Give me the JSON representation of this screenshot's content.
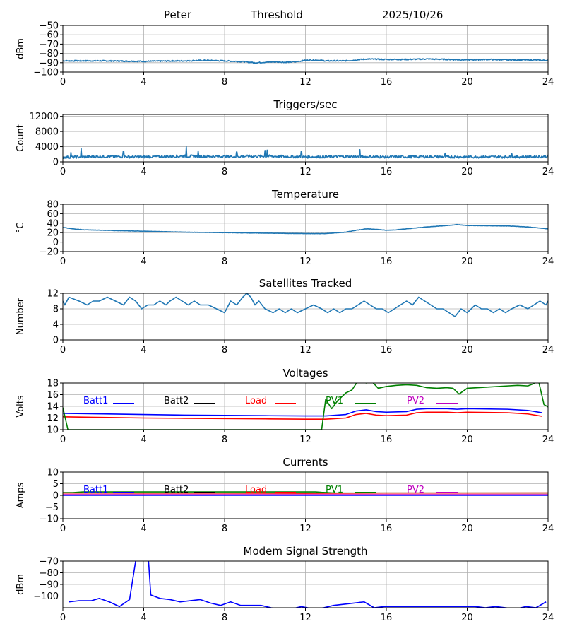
{
  "header": {
    "left": "Peter",
    "center": "Threshold",
    "right": "2025/10/26"
  },
  "colors": {
    "blue": "#1f77b4",
    "grid": "#b0b0b0"
  },
  "chart_data": [
    {
      "id": "threshold",
      "type": "line",
      "title": "",
      "ylabel": "dBm",
      "xlim": [
        0,
        24
      ],
      "ylim": [
        -100,
        -50
      ],
      "xticks": [
        "0",
        "4",
        "8",
        "12",
        "16",
        "20",
        "24"
      ],
      "yticks": [
        -100,
        -90,
        -80,
        -70,
        -60,
        -50
      ],
      "ytick_labels": [
        "−100",
        "−90",
        "−80",
        "−70",
        "−60",
        "−50"
      ],
      "series": [
        {
          "color": "#1f77b4",
          "noise": 0.6,
          "x": [
            0,
            2,
            4,
            6,
            7,
            8,
            9,
            9.5,
            10,
            10.5,
            11,
            11.5,
            12,
            12.5,
            13,
            13.5,
            14,
            14.5,
            15,
            16,
            17,
            18,
            19,
            20,
            21,
            22,
            23,
            24
          ],
          "y": [
            -88,
            -88,
            -88.5,
            -88,
            -87.5,
            -88,
            -89,
            -90,
            -89.5,
            -89,
            -89.5,
            -89,
            -87.5,
            -87,
            -88,
            -88,
            -88,
            -87,
            -86,
            -86.5,
            -86.5,
            -86,
            -86.5,
            -87,
            -86.5,
            -87,
            -87,
            -87.5
          ]
        }
      ]
    },
    {
      "id": "triggers",
      "type": "line",
      "title": "Triggers/sec",
      "ylabel": "Count",
      "xlim": [
        0,
        24
      ],
      "ylim": [
        0,
        12500
      ],
      "xticks": [
        "0",
        "4",
        "8",
        "12",
        "16",
        "20",
        "24"
      ],
      "yticks": [
        0,
        4000,
        8000,
        12000
      ],
      "ytick_labels": [
        "0",
        "4000",
        "8000",
        "12000"
      ],
      "series": [
        {
          "color": "#1f77b4",
          "noise": 350,
          "spikes": [
            [
              0.4,
              2500
            ],
            [
              0.9,
              3500
            ],
            [
              3.0,
              2800
            ],
            [
              6.1,
              4000
            ],
            [
              6.7,
              2900
            ],
            [
              8.6,
              2600
            ],
            [
              10.0,
              3000
            ],
            [
              10.1,
              3100
            ],
            [
              11.8,
              2700
            ],
            [
              14.7,
              3200
            ],
            [
              18.9,
              2300
            ],
            [
              22.2,
              2100
            ]
          ],
          "x": [
            0,
            2,
            4,
            6,
            8,
            10,
            12,
            14,
            16,
            18,
            20,
            22,
            24
          ],
          "y": [
            1200,
            1400,
            1300,
            1500,
            1400,
            1500,
            1300,
            1400,
            1300,
            1350,
            1300,
            1300,
            1400
          ]
        }
      ]
    },
    {
      "id": "temperature",
      "type": "line",
      "title": "Temperature",
      "ylabel": "°C",
      "xlim": [
        0,
        24
      ],
      "ylim": [
        -20,
        80
      ],
      "xticks": [
        "0",
        "4",
        "8",
        "12",
        "16",
        "20",
        "24"
      ],
      "yticks": [
        -20,
        0,
        20,
        40,
        60,
        80
      ],
      "ytick_labels": [
        "−20",
        "0",
        "20",
        "40",
        "60",
        "80"
      ],
      "series": [
        {
          "color": "#1f77b4",
          "noise": 0.3,
          "x": [
            0,
            0.5,
            1,
            2,
            4,
            6,
            8,
            10,
            12,
            13,
            14,
            14.5,
            15,
            15.5,
            16,
            16.5,
            17,
            18,
            19,
            19.5,
            20,
            22,
            23,
            24
          ],
          "y": [
            31,
            28,
            26,
            25,
            23,
            21,
            20,
            19,
            18,
            18,
            21,
            25,
            28,
            27,
            25,
            26,
            28,
            32,
            35,
            37,
            35,
            34,
            32,
            28
          ]
        }
      ]
    },
    {
      "id": "satellites",
      "type": "line",
      "step": true,
      "title": "Satellites Tracked",
      "ylabel": "Number",
      "xlim": [
        0,
        24
      ],
      "ylim": [
        0,
        12
      ],
      "xticks": [
        "0",
        "4",
        "8",
        "12",
        "16",
        "20",
        "24"
      ],
      "yticks": [
        0,
        4,
        8,
        12
      ],
      "ytick_labels": [
        "0",
        "4",
        "8",
        "12"
      ],
      "series": [
        {
          "color": "#1f77b4",
          "x": [
            0,
            0.1,
            0.3,
            0.8,
            1.2,
            1.5,
            1.8,
            2.2,
            2.6,
            3.0,
            3.3,
            3.6,
            3.9,
            4.2,
            4.5,
            4.8,
            5.1,
            5.3,
            5.6,
            5.9,
            6.2,
            6.5,
            6.8,
            7.2,
            7.6,
            8.0,
            8.3,
            8.6,
            8.9,
            9.1,
            9.3,
            9.5,
            9.7,
            10.0,
            10.4,
            10.7,
            11.0,
            11.3,
            11.6,
            12.0,
            12.4,
            12.8,
            13.1,
            13.4,
            13.7,
            14.0,
            14.3,
            14.6,
            14.9,
            15.2,
            15.5,
            15.8,
            16.1,
            16.4,
            16.7,
            17.0,
            17.3,
            17.6,
            17.9,
            18.2,
            18.5,
            18.8,
            19.1,
            19.4,
            19.7,
            20.0,
            20.4,
            20.7,
            21.0,
            21.3,
            21.6,
            21.9,
            22.2,
            22.6,
            23.0,
            23.3,
            23.6,
            23.9,
            24.0
          ],
          "y": [
            10,
            9,
            11,
            10,
            9,
            10,
            10,
            11,
            10,
            9,
            11,
            10,
            8,
            9,
            9,
            10,
            9,
            10,
            11,
            10,
            9,
            10,
            9,
            9,
            8,
            7,
            10,
            9,
            11,
            12,
            11,
            9,
            10,
            8,
            7,
            8,
            7,
            8,
            7,
            8,
            9,
            8,
            7,
            8,
            7,
            8,
            8,
            9,
            10,
            9,
            8,
            8,
            7,
            8,
            9,
            10,
            9,
            11,
            10,
            9,
            8,
            8,
            7,
            6,
            8,
            7,
            9,
            8,
            8,
            7,
            8,
            7,
            8,
            9,
            8,
            9,
            10,
            9,
            10
          ]
        }
      ]
    },
    {
      "id": "voltages",
      "type": "line",
      "title": "Voltages",
      "ylabel": "Volts",
      "xlim": [
        0,
        24
      ],
      "ylim": [
        10,
        18
      ],
      "xticks": [
        "0",
        "4",
        "8",
        "12",
        "16",
        "20",
        "24"
      ],
      "yticks": [
        10,
        12,
        14,
        16,
        18
      ],
      "ytick_labels": [
        "10",
        "12",
        "14",
        "16",
        "18"
      ],
      "legend": [
        "Batt1",
        "Batt2",
        "Load",
        "PV1",
        "PV2"
      ],
      "series": [
        {
          "name": "Batt1",
          "color": "#0000ff",
          "x": [
            0,
            2,
            4,
            6,
            8,
            10,
            12,
            13,
            14,
            14.5,
            15,
            15.5,
            16,
            17,
            17.5,
            18,
            19,
            19.5,
            20,
            22,
            23,
            23.7
          ],
          "y": [
            12.8,
            12.7,
            12.6,
            12.5,
            12.45,
            12.4,
            12.35,
            12.35,
            12.6,
            13.2,
            13.4,
            13.1,
            13.0,
            13.1,
            13.5,
            13.6,
            13.6,
            13.5,
            13.6,
            13.5,
            13.3,
            12.9
          ]
        },
        {
          "name": "Load",
          "color": "#ff0000",
          "x": [
            0,
            2,
            4,
            6,
            8,
            10,
            12,
            13,
            14,
            14.5,
            15,
            15.5,
            16,
            17,
            17.5,
            18,
            19,
            19.5,
            20,
            22,
            23,
            23.7
          ],
          "y": [
            12.2,
            12.1,
            12.0,
            11.95,
            11.9,
            11.85,
            11.8,
            11.8,
            12.0,
            12.6,
            12.8,
            12.5,
            12.4,
            12.5,
            12.9,
            13.0,
            13.0,
            12.9,
            13.0,
            12.9,
            12.7,
            12.3
          ]
        },
        {
          "name": "PV1",
          "color": "#008000",
          "x": [
            0,
            0.25,
            12.8,
            13.0,
            13.3,
            13.6,
            14.0,
            14.3,
            14.6,
            15.0,
            15.3,
            15.6,
            16.0,
            16.5,
            17.0,
            17.5,
            18.0,
            18.5,
            19.0,
            19.3,
            19.6,
            20.0,
            21.0,
            22.0,
            22.5,
            23.0,
            23.3,
            23.5,
            23.8,
            24.0
          ],
          "y": [
            13.8,
            10.0,
            10.0,
            15.2,
            13.6,
            15.0,
            16.3,
            16.8,
            18.4,
            18.0,
            18.2,
            17.1,
            17.4,
            17.6,
            17.7,
            17.6,
            17.2,
            17.1,
            17.2,
            17.1,
            16.1,
            17.1,
            17.3,
            17.5,
            17.6,
            17.5,
            17.9,
            18.8,
            14.3,
            13.9
          ]
        }
      ]
    },
    {
      "id": "currents",
      "type": "line",
      "title": "Currents",
      "ylabel": "Amps",
      "xlim": [
        0,
        24
      ],
      "ylim": [
        -10,
        10
      ],
      "xticks": [
        "0",
        "4",
        "8",
        "12",
        "16",
        "20",
        "24"
      ],
      "yticks": [
        -10,
        -5,
        0,
        5,
        10
      ],
      "ytick_labels": [
        "−10",
        "−5",
        "0",
        "5",
        "10"
      ],
      "legend": [
        "Batt1",
        "Batt2",
        "Load",
        "PV1",
        "PV2"
      ],
      "series": [
        {
          "name": "PV1",
          "color": "#008000",
          "x": [
            0,
            0.5,
            1,
            12.5,
            12.8,
            13.5,
            24
          ],
          "y": [
            1.2,
            1.2,
            1.5,
            1.5,
            1.3,
            1.0,
            1.0
          ]
        },
        {
          "name": "Load",
          "color": "#ff0000",
          "x": [
            0,
            4,
            8,
            12,
            16,
            20,
            24
          ],
          "y": [
            1.0,
            0.95,
            0.95,
            0.9,
            1.0,
            1.0,
            1.05
          ]
        },
        {
          "name": "PV2",
          "color": "#bf00bf",
          "x": [
            0,
            24
          ],
          "y": [
            0.3,
            0.3
          ]
        },
        {
          "name": "Batt1",
          "color": "#0000ff",
          "x": [
            0,
            24
          ],
          "y": [
            0.0,
            0.0
          ]
        }
      ]
    },
    {
      "id": "modem",
      "type": "line",
      "title": "Modem Signal Strength",
      "ylabel": "dBm",
      "xlim": [
        0,
        24
      ],
      "ylim": [
        -110,
        -70
      ],
      "xticks": [
        "0",
        "4",
        "8",
        "12",
        "16",
        "20",
        "24"
      ],
      "yticks": [
        -100,
        -90,
        -80,
        -70
      ],
      "ytick_labels": [
        "−100",
        "−90",
        "−80",
        "−70"
      ],
      "series": [
        {
          "name": "Modem",
          "color": "#0000ff",
          "x": [
            0.3,
            0.8,
            1.4,
            1.8,
            2.3,
            2.8,
            3.3,
            3.6,
            3.9,
            4.2,
            4.35,
            4.8,
            5.3,
            5.8,
            6.3,
            6.8,
            7.3,
            7.8,
            8.3,
            8.8,
            9.3,
            9.8,
            10.3,
            10.8,
            11.3,
            11.8,
            12.1,
            12.4,
            12.9,
            13.4,
            13.9,
            14.4,
            14.9,
            15.4,
            15.9,
            16.4,
            16.9,
            17.9,
            18.9,
            19.9,
            20.4,
            20.9,
            21.4,
            21.9,
            22.4,
            22.9,
            23.4,
            23.9
          ],
          "y": [
            -105,
            -104,
            -104,
            -102,
            -105,
            -109,
            -103,
            -70,
            -60,
            -60,
            -99,
            -102,
            -103,
            -105,
            -104,
            -103,
            -106,
            -108,
            -105,
            -108,
            -108,
            -108,
            -110,
            -111,
            -111,
            -109,
            -110,
            -111,
            -110,
            -108,
            -107,
            -106,
            -105,
            -110,
            -109,
            -109,
            -109,
            -109,
            -109,
            -109,
            -109,
            -110,
            -109,
            -110,
            -111,
            -109,
            -110,
            -105
          ]
        }
      ]
    }
  ]
}
